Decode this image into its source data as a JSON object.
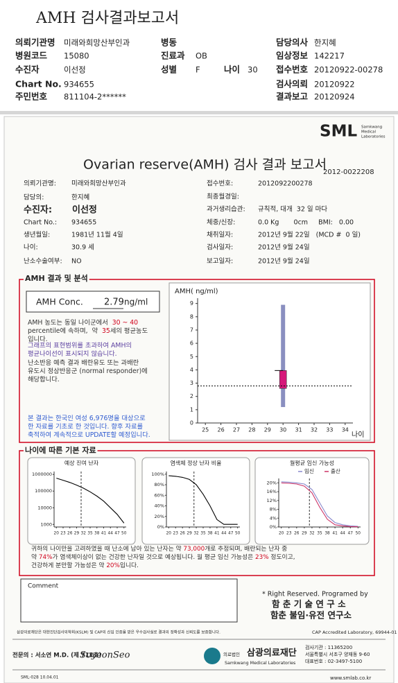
{
  "header": {
    "title": "AMH 검사결과보고서",
    "fields": [
      {
        "label": "의뢰기관명",
        "value": "미래와희망산부인과"
      },
      {
        "label": "병원코드",
        "value": "15080"
      },
      {
        "label": "수진자",
        "value": "이선정"
      },
      {
        "label": "Chart No.",
        "value": "934655"
      },
      {
        "label": "주민번호",
        "value": "811104-2******"
      },
      {
        "label": "병동"
      },
      {
        "label": "진료과",
        "value": "OB"
      },
      {
        "label": "성별",
        "value": "F"
      },
      {
        "label": "나이",
        "value": "30"
      },
      {
        "label": "담당의사",
        "value": "한지혜"
      },
      {
        "label": "임상정보",
        "value": "142217"
      },
      {
        "label": "접수번호",
        "value": "20120922-00278"
      },
      {
        "label": "검사의뢰",
        "value": "20120922"
      },
      {
        "label": "결과보고",
        "value": "20120924"
      }
    ]
  },
  "report": {
    "logo": "SML",
    "logo_sub": [
      "Samkwang",
      "Medical",
      "Laboratories"
    ],
    "title": "Ovarian reserve(AMH) 검사 결과 보고서",
    "number": "2012-0022208",
    "patient_left": [
      {
        "label": "의뢰기관명:",
        "value": "미래와희망산부인과"
      },
      {
        "label": "담당의:",
        "value": "한지혜"
      },
      {
        "label": "수진자:",
        "value": "이선정"
      },
      {
        "label": "Chart No.:",
        "value": "934655"
      },
      {
        "label": "생년월일:",
        "value": "1981년 11월 4일"
      },
      {
        "label": "나이:",
        "value": "30.9 세"
      },
      {
        "label": "난소수술여부:",
        "value": "NO"
      }
    ],
    "patient_right": [
      {
        "label": "접수번호:",
        "value": "2012092200278"
      },
      {
        "label": "최종월경일:"
      },
      {
        "label": "과거생리습관:",
        "value": "규칙적, 대개  32 일 마다"
      },
      {
        "label": "체중/신장:",
        "value": "0.0 Kg       0cm     BMI:   0.00"
      },
      {
        "label": "채취일자:",
        "value": "2012년 9월 22일   (MCD #  0 일)"
      },
      {
        "label": "검사일자:",
        "value": "2012년 9월 24일"
      },
      {
        "label": "보고일자:",
        "value": "2012년 9월 24일"
      }
    ],
    "result": {
      "heading": "AMH 결과 및 분석",
      "label": "AMH Conc.",
      "value": 2.79,
      "unit": "ng/ml",
      "analysis": [
        {
          "color": "#333333",
          "lines": [
            [
              {
                "text": "AMH 농도는 동일 나이군에서  "
              },
              {
                "text": "30 ~ 40",
                "color": "#d0021b"
              }
            ],
            [
              {
                "text": "percentile에 속하며,  약  "
              },
              {
                "text": "35",
                "color": "#d0021b"
              },
              {
                "text": "세의 평균농도"
              }
            ],
            [
              {
                "text": "입니다."
              }
            ]
          ]
        },
        {
          "color": "#5b3fa0",
          "lines": [
            [
              {
                "text": "그래프의 표현범위를 초과하여 AMH의"
              }
            ],
            [
              {
                "text": "평균나이선이 표시되지 않습니다."
              }
            ]
          ]
        },
        {
          "color": "#333333",
          "lines": [
            [
              {
                "text": "난소반응 예측 결과 배란유도 또는 과배란"
              }
            ],
            [
              {
                "text": "유도시 정상반응군 (normal responder)에"
              }
            ],
            [
              {
                "text": "해당합니다."
              }
            ]
          ]
        },
        {
          "color": "#2f5bd0",
          "lines": [
            [
              {
                "text": "본 결과는 한국인 여성 6,976명을 대상으로"
              }
            ],
            [
              {
                "text": "한 자료를 기초로 한 것입니다. 향후 자료를"
              }
            ],
            [
              {
                "text": "축적하여 계속적으로 UPDATE할 예정입니다."
              }
            ]
          ]
        }
      ]
    },
    "chart": {
      "y_label": "AMH( ng/ml)",
      "x_label": "나이",
      "xlim": [
        24.5,
        34.5
      ],
      "ylim": [
        0,
        9.4
      ],
      "xticks": [
        25,
        26,
        27,
        28,
        29,
        30,
        31,
        32,
        33,
        34
      ],
      "yticks": [
        0,
        1,
        2,
        3,
        4,
        5,
        6,
        7,
        8,
        9
      ],
      "x": 30,
      "range": [
        1.2,
        8.9
      ],
      "box": [
        2.6,
        3.95
      ],
      "range_color": "#8a8fc0",
      "box_color": "#d6187a"
    }
  },
  "age_data": {
    "heading": "나이에 따른 기본 자료",
    "charts": [
      {
        "title": "예상 진여 난자",
        "log": true,
        "ylim": [
          700,
          1500000
        ],
        "yticks": [
          1000000,
          100000,
          10000,
          1000
        ],
        "xlim": [
          19,
          51
        ],
        "xticks": [
          20,
          23,
          26,
          29,
          32,
          35,
          38,
          41,
          44,
          47,
          50
        ],
        "marker_x": 31,
        "x": [
          20,
          23,
          26,
          29,
          32,
          35,
          38,
          41,
          44,
          47,
          50
        ],
        "series": [
          {
            "color": "#000000",
            "values": [
              600000,
              450000,
              330000,
              230000,
              150000,
              90000,
              50000,
              25000,
              10000,
              4000,
              1200
            ]
          }
        ]
      },
      {
        "title": "염색체 정상 난자 비율",
        "ylim": [
          0,
          105
        ],
        "yticks": [
          {
            "value": 0,
            "label": "0%"
          },
          {
            "value": 20,
            "label": "20%"
          },
          {
            "value": 40,
            "label": "40%"
          },
          {
            "value": 60,
            "label": "60%"
          },
          {
            "value": 80,
            "label": "80%"
          },
          {
            "value": 100,
            "label": "100%"
          }
        ],
        "xlim": [
          19,
          51
        ],
        "xticks": [
          20,
          23,
          26,
          29,
          32,
          35,
          38,
          41,
          44,
          47,
          50
        ],
        "marker_x": 31,
        "x": [
          20,
          23,
          26,
          29,
          32,
          35,
          38,
          41,
          44,
          47,
          50
        ],
        "series": [
          {
            "color": "#000000",
            "values": [
              97,
              96,
              94,
              90,
              80,
              62,
              40,
              14,
              5,
              5,
              5
            ]
          }
        ]
      },
      {
        "title": "월평균 임신 가능성",
        "ylim": [
          0,
          22
        ],
        "yticks": [
          {
            "value": 0,
            "label": "0%"
          },
          {
            "value": 4,
            "label": "4%"
          },
          {
            "value": 8,
            "label": "8%"
          },
          {
            "value": 12,
            "label": "12%"
          },
          {
            "value": 16,
            "label": "16%"
          },
          {
            "value": 20,
            "label": "20%"
          }
        ],
        "xlim": [
          19,
          51
        ],
        "xticks": [
          20,
          23,
          26,
          29,
          32,
          35,
          38,
          41,
          44,
          47,
          50
        ],
        "marker_x": 31,
        "x": [
          20,
          23,
          26,
          29,
          32,
          35,
          38,
          41,
          44,
          47,
          50
        ],
        "series": [
          {
            "name": "임신",
            "color": "#8888cc",
            "values": [
              20.5,
              20.3,
              20,
              19.5,
              17,
              11,
              5,
              2,
              1,
              0.5,
              0.3
            ]
          },
          {
            "name": "출산",
            "color": "#cc3366",
            "values": [
              20,
              19.8,
              19.5,
              18.5,
              15.5,
              9,
              3.5,
              1,
              0.5,
              0.2,
              0.1
            ]
          }
        ]
      }
    ],
    "summary": [
      [
        {
          "text": "귀하의 나이만을 고려하였을 때 난소에 남아 있는 난자는 약 "
        },
        {
          "text": "73,000",
          "color": "#d0021b"
        },
        {
          "text": "개로 추정되며, 배란되는 난자 중"
        }
      ],
      [
        {
          "text": "약 "
        },
        {
          "text": "74%",
          "color": "#d0021b"
        },
        {
          "text": "가 염색체이상이 없는 건강한 난자일 것으로 예상됩니다. 월 평균 임신 가능성은 "
        },
        {
          "text": "23%",
          "color": "#d0021b"
        },
        {
          "text": " 정도이고,"
        }
      ],
      [
        {
          "text": "건강하게 분만할 가능성은 약 "
        },
        {
          "text": "20%",
          "color": "#d0021b"
        },
        {
          "text": "입니다."
        }
      ]
    ]
  },
  "comment": {
    "label": "Comment"
  },
  "credits": [
    "* Right Reserved. Programed by",
    "함 춘 기 술 연 구 소",
    "함춘 불임·유전 연구소"
  ],
  "footer": {
    "notice": "삼광의료재단은 대한진단검사의학회(KSLM) 및 CAP의 신임 인증을 받은 우수검사실로 결과의 정확성과 신뢰도를 보증합니다.",
    "cap": "CAP Accredited Laboratory, 69944-01",
    "doctor": "전문의 : 서소연 M.D. (제 711호)",
    "signature": "SoyeonSeo",
    "org_type": "의료법인",
    "org": "삼광의료재단",
    "org_en": "Samkwang Medical Laboratories",
    "address": [
      "검사기관 : 11365200",
      "서울특별시 서초구 양재동 9-60",
      "대표번호 : 02-3497-5100"
    ],
    "code": "SML-028 10.04.01",
    "url": "www.smlab.co.kr"
  }
}
